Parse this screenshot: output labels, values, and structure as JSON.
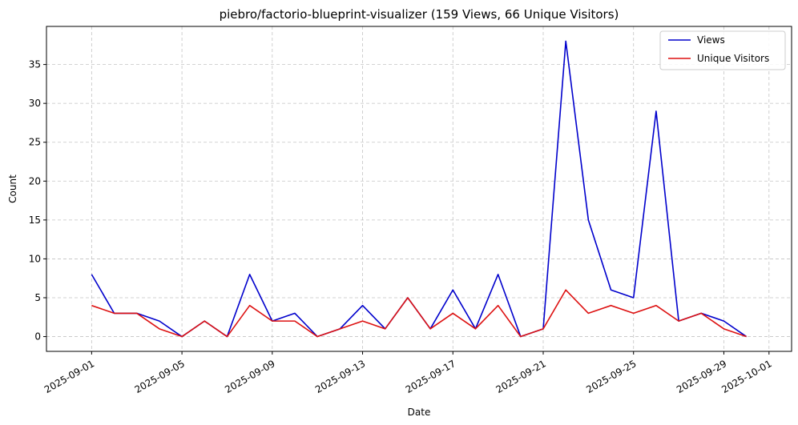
{
  "chart_data": {
    "type": "line",
    "title": "piebro/factorio-blueprint-visualizer (159 Views, 66 Unique Visitors)",
    "xlabel": "Date",
    "ylabel": "Count",
    "x": [
      "2025-09-01",
      "2025-09-02",
      "2025-09-03",
      "2025-09-04",
      "2025-09-05",
      "2025-09-06",
      "2025-09-07",
      "2025-09-08",
      "2025-09-09",
      "2025-09-10",
      "2025-09-11",
      "2025-09-12",
      "2025-09-13",
      "2025-09-14",
      "2025-09-15",
      "2025-09-16",
      "2025-09-17",
      "2025-09-18",
      "2025-09-19",
      "2025-09-20",
      "2025-09-21",
      "2025-09-22",
      "2025-09-23",
      "2025-09-24",
      "2025-09-25",
      "2025-09-26",
      "2025-09-27",
      "2025-09-28",
      "2025-09-29",
      "2025-09-30"
    ],
    "series": [
      {
        "name": "Views",
        "color": "#0000cc",
        "values": [
          8,
          3,
          3,
          2,
          0,
          2,
          0,
          8,
          2,
          3,
          0,
          1,
          4,
          1,
          5,
          1,
          6,
          1,
          8,
          0,
          1,
          38,
          15,
          6,
          5,
          29,
          2,
          3,
          2,
          0
        ]
      },
      {
        "name": "Unique Visitors",
        "color": "#dd1111",
        "values": [
          4,
          3,
          3,
          1,
          0,
          2,
          0,
          4,
          2,
          2,
          0,
          1,
          2,
          1,
          5,
          1,
          3,
          1,
          4,
          0,
          1,
          6,
          3,
          4,
          3,
          4,
          2,
          3,
          1,
          0
        ]
      }
    ],
    "xticks": [
      "2025-09-01",
      "2025-09-05",
      "2025-09-09",
      "2025-09-13",
      "2025-09-17",
      "2025-09-21",
      "2025-09-25",
      "2025-09-29",
      "2025-10-01"
    ],
    "xlim": [
      "2025-08-30",
      "2025-10-02"
    ],
    "yticks": [
      0,
      5,
      10,
      15,
      20,
      25,
      30,
      35
    ],
    "ylim": [
      -1.9,
      39.9
    ],
    "grid": true,
    "legend_position": "top-right"
  }
}
